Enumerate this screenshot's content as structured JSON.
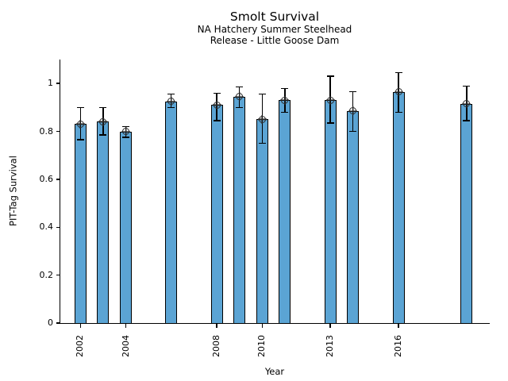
{
  "chart_data": {
    "type": "bar",
    "title": "Smolt Survival",
    "subtitle_lines": [
      "NA Hatchery Summer Steelhead",
      "Release - Little Goose Dam"
    ],
    "xlabel": "Year",
    "ylabel": "PIT-Tag Survival",
    "xlim": [
      2001.1,
      2020.0
    ],
    "ylim": [
      0,
      1.1
    ],
    "grid": false,
    "legend": false,
    "bar_color": "#5BA4D4",
    "bar_edge_color": "#000000",
    "error_bar_color": "#000000",
    "marker": "open-circle-with-cross",
    "bar_width_years": 0.5,
    "xticks": [
      2002,
      2004,
      2008,
      2010,
      2013,
      2016
    ],
    "xtick_labels": [
      "2002",
      "2004",
      "2008",
      "2010",
      "2013",
      "2016"
    ],
    "xtick_rotation_deg": 90,
    "yticks": [
      0,
      0.2,
      0.4,
      0.6,
      0.8,
      1
    ],
    "ytick_labels": [
      "0",
      "0.2",
      "0.4",
      "0.6",
      "0.8",
      "1"
    ],
    "categories": [
      2002,
      2003,
      2004,
      2006,
      2008,
      2009,
      2010,
      2011,
      2013,
      2014,
      2016,
      2019
    ],
    "values": [
      0.83,
      0.84,
      0.8,
      0.925,
      0.91,
      0.945,
      0.85,
      0.93,
      0.93,
      0.885,
      0.965,
      0.915
    ],
    "error_low": [
      0.765,
      0.785,
      0.775,
      0.9,
      0.845,
      0.9,
      0.75,
      0.88,
      0.835,
      0.8,
      0.88,
      0.845
    ],
    "error_high": [
      0.9,
      0.9,
      0.82,
      0.955,
      0.96,
      0.985,
      0.955,
      0.98,
      1.03,
      0.965,
      1.045,
      0.99
    ]
  }
}
